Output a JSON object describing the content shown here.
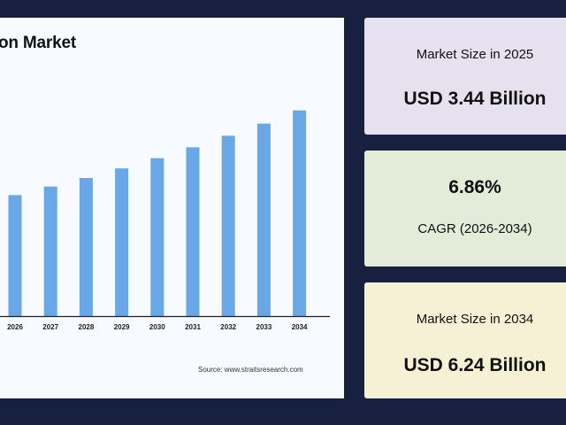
{
  "chart_data": {
    "type": "bar",
    "title": "on Market",
    "categories": [
      "2026",
      "2027",
      "2028",
      "2029",
      "2030",
      "2031",
      "2032",
      "2033",
      "2034"
    ],
    "values": [
      3.67,
      3.93,
      4.19,
      4.48,
      4.79,
      5.12,
      5.47,
      5.84,
      6.24
    ],
    "ylim": [
      0,
      6.5
    ],
    "grid": false,
    "bar_color": "#6aa7e6",
    "source": "Source: www.straitsresearch.com"
  },
  "cards": [
    {
      "label": "Market Size in 2025",
      "value": "USD 3.44 Billion",
      "color": "#e6e1ee"
    },
    {
      "label": "CAGR (2026-2034)",
      "value": "6.86%",
      "color": "#e3ecd9"
    },
    {
      "label": "Market Size in 2034",
      "value": "USD 6.24 Billion",
      "color": "#f6f1d4"
    }
  ]
}
